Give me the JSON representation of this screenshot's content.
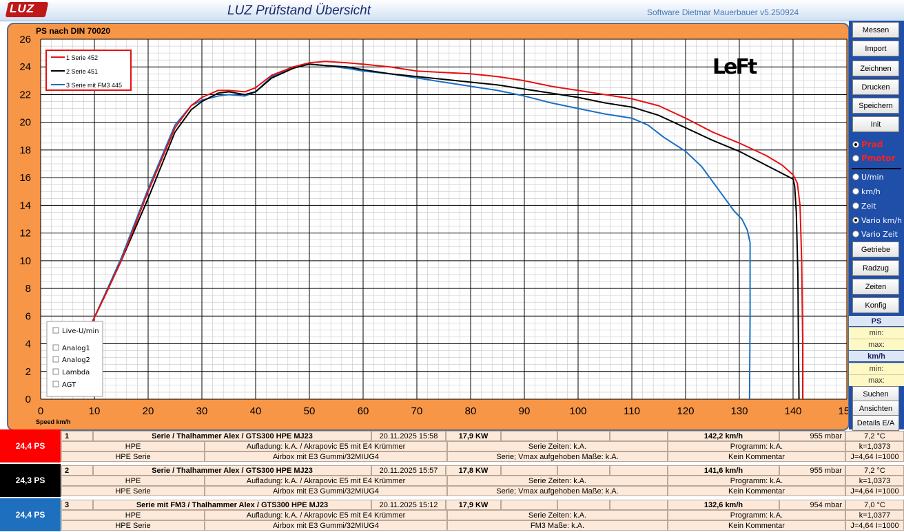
{
  "header": {
    "logo_text": "LUZ",
    "title": "LUZ Prüfstand  Übersicht",
    "software": "Software Dietmar Mauerbauer v5.250924"
  },
  "chart_data": {
    "type": "line",
    "title": "PS nach DIN 70020",
    "xlabel": "Speed km/h",
    "ylabel": "",
    "xlim": [
      0,
      150
    ],
    "ylim": [
      0,
      26
    ],
    "xticks": [
      0,
      10,
      20,
      30,
      40,
      50,
      60,
      70,
      80,
      90,
      100,
      110,
      120,
      130,
      140,
      150
    ],
    "yticks": [
      0,
      2,
      4,
      6,
      8,
      10,
      12,
      14,
      16,
      18,
      20,
      22,
      24,
      26
    ],
    "grid": true,
    "legend_position": "top-left",
    "series": [
      {
        "name": "1  Serie 452",
        "color": "#e81010",
        "x": [
          9.5,
          12,
          15,
          20,
          25,
          28,
          30,
          33,
          35,
          38,
          40,
          43,
          47,
          50,
          53,
          57,
          60,
          65,
          70,
          75,
          80,
          85,
          90,
          95,
          100,
          105,
          110,
          115,
          120,
          125,
          130,
          135,
          138,
          140,
          140.8,
          141.3,
          141.6,
          141.8,
          141.8
        ],
        "y": [
          5.5,
          7.5,
          10.0,
          15.0,
          19.6,
          21.2,
          21.8,
          22.3,
          22.3,
          22.2,
          22.5,
          23.4,
          24.0,
          24.3,
          24.4,
          24.3,
          24.2,
          24.0,
          23.7,
          23.6,
          23.5,
          23.3,
          23.0,
          22.6,
          22.3,
          22.0,
          21.7,
          21.2,
          20.3,
          19.3,
          18.5,
          17.6,
          16.9,
          16.2,
          15.6,
          14.0,
          10.0,
          4.0,
          0.0
        ]
      },
      {
        "name": "2  Serie 451",
        "color": "#000000",
        "x": [
          9.5,
          12,
          15,
          20,
          25,
          28,
          30,
          33,
          35,
          38,
          40,
          43,
          47,
          50,
          53,
          57,
          60,
          65,
          70,
          75,
          80,
          85,
          90,
          95,
          100,
          105,
          110,
          115,
          120,
          125,
          130,
          135,
          138,
          140,
          140.3,
          140.6,
          140.9,
          141.0,
          141.1
        ],
        "y": [
          5.5,
          7.5,
          10.0,
          14.5,
          19.3,
          20.9,
          21.5,
          22.1,
          22.2,
          22.0,
          22.2,
          23.2,
          23.9,
          24.2,
          24.1,
          24.0,
          23.8,
          23.5,
          23.3,
          23.1,
          22.9,
          22.7,
          22.4,
          22.1,
          21.8,
          21.4,
          21.1,
          20.5,
          19.6,
          18.7,
          17.9,
          16.9,
          16.3,
          15.9,
          15.4,
          13.5,
          9.0,
          4.0,
          0.0
        ]
      },
      {
        "name": "3  Serie mit FM3  445",
        "color": "#1a6fc4",
        "x": [
          9.5,
          12,
          15,
          20,
          25,
          28,
          30,
          33,
          35,
          38,
          40,
          43,
          47,
          50,
          53,
          57,
          60,
          65,
          70,
          75,
          80,
          85,
          90,
          95,
          100,
          105,
          110,
          113,
          116,
          120,
          123,
          126,
          129,
          130.5,
          131.5,
          132.0,
          132.0,
          131.9
        ],
        "y": [
          5.5,
          7.6,
          10.2,
          15.2,
          19.8,
          21.2,
          21.6,
          21.9,
          22.0,
          21.9,
          22.2,
          23.3,
          24.0,
          24.2,
          24.1,
          23.9,
          23.7,
          23.5,
          23.2,
          22.9,
          22.6,
          22.3,
          21.9,
          21.4,
          21.0,
          20.6,
          20.3,
          19.8,
          18.9,
          17.9,
          16.8,
          15.2,
          13.6,
          13.0,
          12.2,
          11.3,
          6.0,
          0.0
        ]
      }
    ]
  },
  "overlay": {
    "watermark": "LeFt",
    "checkboxes": [
      "Live-U/min",
      "Analog1",
      "Analog2",
      "Lambda",
      "AGT"
    ]
  },
  "sidebar": {
    "buttons_top": [
      "Messen",
      "Import",
      "Zeichnen",
      "Drucken",
      "Speichern",
      "Init"
    ],
    "power_options": [
      {
        "label": "Prad",
        "selected": true
      },
      {
        "label": "Pmotor",
        "selected": false
      }
    ],
    "axis_options": [
      {
        "label": "U/min",
        "selected": false
      },
      {
        "label": "km/h",
        "selected": false
      },
      {
        "label": "Zeit",
        "selected": false
      },
      {
        "label": "Vario km/h",
        "selected": true
      },
      {
        "label": "Vario Zeit",
        "selected": false
      }
    ],
    "buttons_mid": [
      "Getriebe",
      "Radzug",
      "Zeiten",
      "Konfig"
    ],
    "ps_head": "PS",
    "ps_min": "min:",
    "ps_max": "max:",
    "kmh_head": "km/h",
    "kmh_min": "min:",
    "kmh_max": "max:",
    "buttons_bottom": [
      "Suchen",
      "Ansichten",
      "Details E/A"
    ]
  },
  "runs": [
    {
      "ps": "24,4  PS",
      "color": "#ff0000",
      "num": "1",
      "name": "Serie / Thalhammer Alex / GTS300 HPE MJ23",
      "date": "20.11.2025 15:58",
      "kw": "17,9  KW",
      "vmax": "142,2 km/h",
      "mbar": "955  mbar",
      "temp": "7,2 °C",
      "r2": [
        "HPE",
        "Aufladung: k.A.  / Akrapovic E5 mit E4 Krümmer",
        "Serie  Zeiten: k.A.",
        "Programm: k.A.",
        "k=1,0373"
      ],
      "r3": [
        "HPE Serie",
        "Airbox mit E3 Gummi/32MIUG4",
        "Serie; Vmax aufgehoben Maße: k.A.",
        "Kein Kommentar",
        "J=4,64 I=1000"
      ]
    },
    {
      "ps": "24,3  PS",
      "color": "#000000",
      "num": "2",
      "name": "Serie / Thalhammer Alex / GTS300 HPE MJ23",
      "date": "20.11.2025 15:57",
      "kw": "17,8  KW",
      "vmax": "141,6 km/h",
      "mbar": "955  mbar",
      "temp": "7,2 °C",
      "r2": [
        "HPE",
        "Aufladung: k.A.  / Akrapovic E5 mit E4 Krümmer",
        "Serie  Zeiten: k.A.",
        "Programm: k.A.",
        "k=1,0373"
      ],
      "r3": [
        "HPE Serie",
        "Airbox mit E3 Gummi/32MIUG4",
        "Serie; Vmax aufgehoben Maße: k.A.",
        "Kein Kommentar",
        "J=4,64 I=1000"
      ]
    },
    {
      "ps": "24,4  PS",
      "color": "#1f6fbf",
      "num": "3",
      "name": "Serie mit FM3  / Thalhammer Alex / GTS300 HPE MJ23",
      "date": "20.11.2025 15:12",
      "kw": "17,9  KW",
      "vmax": "132,6 km/h",
      "mbar": "954  mbar",
      "temp": "7,0 °C",
      "r2": [
        "HPE",
        "Aufladung: k.A.  / Akrapovic E5 mit E4 Krümmer",
        "Serie  Zeiten: k.A.",
        "Programm: k.A.",
        "k=1,0377"
      ],
      "r3": [
        "HPE Serie",
        "Airbox mit E3 Gummi/32MIUG4",
        "FM3 Maße: k.A.",
        "Kein Kommentar",
        "J=4,64 I=1000"
      ]
    }
  ]
}
